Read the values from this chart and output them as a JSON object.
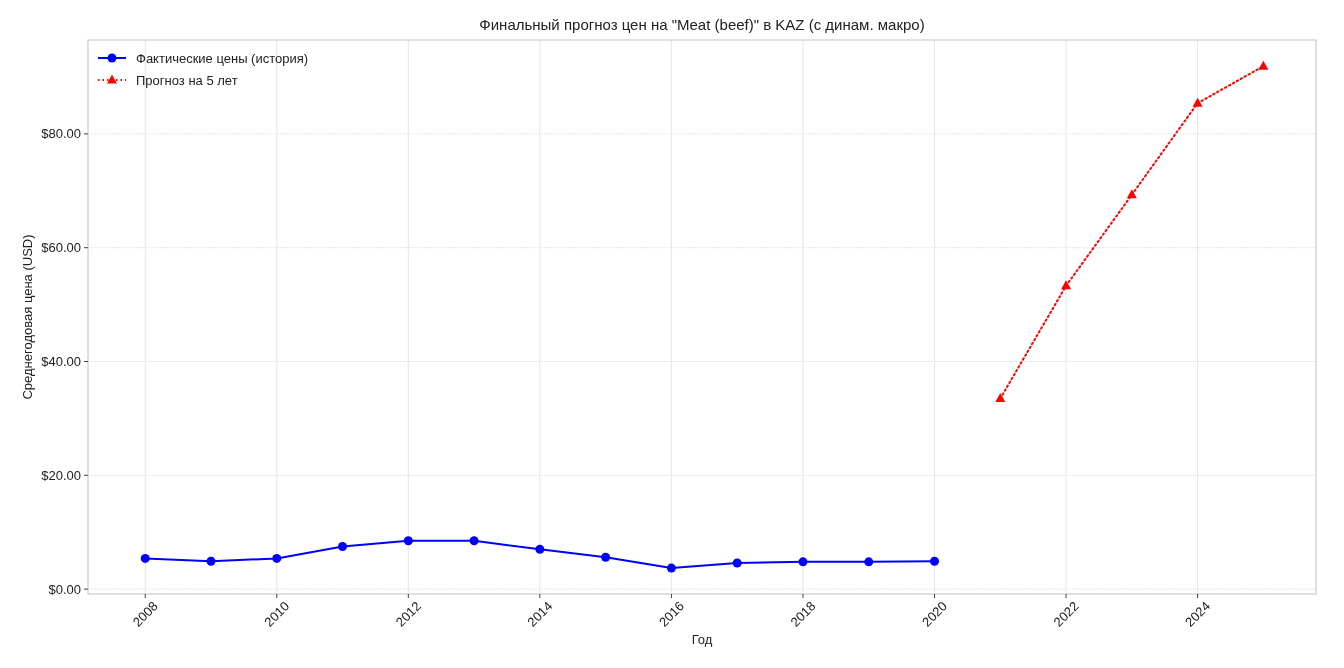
{
  "chart_data": {
    "type": "line",
    "title": "Финальный прогноз цен на \"Meat (beef)\" в KAZ (с динам. макро)",
    "xlabel": "Год",
    "ylabel": "Среднегодовая цена (USD)",
    "series": [
      {
        "name": "Фактические цены (история)",
        "color": "#0000ff",
        "marker": "circle",
        "line_style": "solid",
        "x": [
          2008,
          2009,
          2010,
          2011,
          2012,
          2013,
          2014,
          2015,
          2016,
          2017,
          2018,
          2019,
          2020
        ],
        "values": [
          5.4,
          4.9,
          5.4,
          7.5,
          8.5,
          8.5,
          7.0,
          5.6,
          3.7,
          4.6,
          4.8,
          4.8,
          4.9
        ]
      },
      {
        "name": "Прогноз на 5 лет",
        "color": "#ff0000",
        "marker": "triangle",
        "line_style": "dotted",
        "x": [
          2021,
          2022,
          2023,
          2024,
          2025
        ],
        "values": [
          33.5,
          53.3,
          69.3,
          85.4,
          91.9
        ]
      }
    ],
    "xlim": [
      2007.13,
      2025.8
    ],
    "xticks": [
      2008,
      2010,
      2012,
      2014,
      2016,
      2018,
      2020,
      2022,
      2024
    ],
    "ylim": [
      -0.85,
      96.5
    ],
    "yticks": [
      {
        "value": 0,
        "label": "$0.00"
      },
      {
        "value": 20,
        "label": "$20.00"
      },
      {
        "value": 40,
        "label": "$40.00"
      },
      {
        "value": 60,
        "label": "$60.00"
      },
      {
        "value": 80,
        "label": "$80.00"
      }
    ],
    "grid": true,
    "legend": "top left"
  }
}
